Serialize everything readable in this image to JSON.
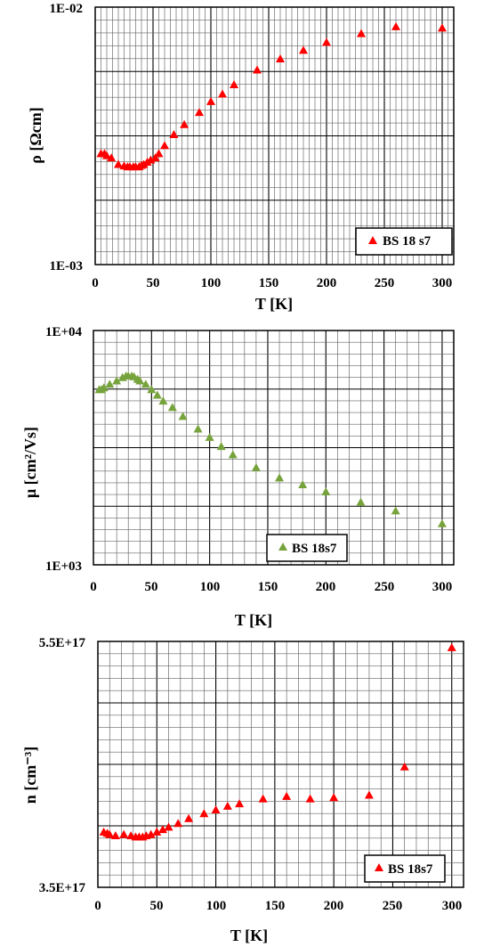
{
  "chart_data": [
    {
      "type": "scatter",
      "xlabel": "T [K]",
      "ylabel": "ρ [Ωcm]",
      "y_scale": "log",
      "xlim": [
        0,
        310
      ],
      "ylim": [
        0.001,
        0.01
      ],
      "x_ticks": [
        "0",
        "50",
        "100",
        "150",
        "200",
        "250",
        "300"
      ],
      "y_ticks": [
        "1E-03",
        "1E-02"
      ],
      "grid": true,
      "legend": "bottom-right",
      "marker_color": "#ff0000",
      "series": [
        {
          "name": "BS 18 s7",
          "x": [
            5,
            8,
            10,
            14,
            20,
            25,
            28,
            30,
            33,
            35,
            38,
            40,
            42,
            45,
            48,
            52,
            55,
            60,
            68,
            77,
            90,
            100,
            110,
            120,
            140,
            160,
            180,
            200,
            230,
            260,
            300
          ],
          "y": [
            0.0027,
            0.0027,
            0.00265,
            0.0026,
            0.00245,
            0.00242,
            0.0024,
            0.0024,
            0.0024,
            0.0024,
            0.0024,
            0.00243,
            0.00245,
            0.0025,
            0.00255,
            0.0026,
            0.0027,
            0.0029,
            0.0032,
            0.0035,
            0.0039,
            0.0043,
            0.0046,
            0.005,
            0.0057,
            0.0063,
            0.0068,
            0.0073,
            0.0079,
            0.0084,
            0.0083
          ]
        }
      ]
    },
    {
      "type": "scatter",
      "xlabel": "T [K]",
      "ylabel": "μ [cm²/Vs]",
      "y_scale": "log",
      "xlim": [
        0,
        310
      ],
      "ylim": [
        1000,
        10000
      ],
      "x_ticks": [
        "0",
        "50",
        "100",
        "150",
        "200",
        "250",
        "300"
      ],
      "y_ticks": [
        "1E+03",
        "1E+04"
      ],
      "grid": true,
      "legend": "bottom-center",
      "marker_color": "#77a33c",
      "series": [
        {
          "name": "BS 18s7",
          "x": [
            5,
            7,
            9,
            14,
            20,
            25,
            28,
            30,
            33,
            35,
            38,
            40,
            45,
            50,
            55,
            60,
            68,
            77,
            90,
            100,
            110,
            120,
            140,
            160,
            180,
            200,
            230,
            260,
            300
          ],
          "y": [
            5600,
            5600,
            5700,
            5900,
            6100,
            6300,
            6400,
            6400,
            6400,
            6350,
            6200,
            6100,
            5900,
            5600,
            5300,
            5000,
            4700,
            4300,
            3800,
            3500,
            3200,
            2950,
            2600,
            2350,
            2200,
            2050,
            1850,
            1700,
            1500
          ]
        }
      ]
    },
    {
      "type": "scatter",
      "xlabel": "T [K]",
      "ylabel": "n [cm⁻³]",
      "xlim": [
        0,
        310
      ],
      "ylim": [
        3.5e+17,
        5.5e+17
      ],
      "x_ticks": [
        "0",
        "50",
        "100",
        "150",
        "200",
        "250",
        "300"
      ],
      "y_ticks": [
        "3.5E+17",
        "5.5E+17"
      ],
      "grid": true,
      "legend": "bottom-right",
      "marker_color": "#ff0000",
      "series": [
        {
          "name": "BS 18s7",
          "x": [
            5,
            8,
            10,
            15,
            22,
            28,
            32,
            35,
            38,
            41,
            45,
            50,
            55,
            60,
            68,
            77,
            90,
            100,
            110,
            120,
            140,
            160,
            180,
            200,
            230,
            260,
            300
          ],
          "y": [
            3.95e+17,
            3.94e+17,
            3.93e+17,
            3.92e+17,
            3.93e+17,
            3.92e+17,
            3.91e+17,
            3.91e+17,
            3.91e+17,
            3.92e+17,
            3.93e+17,
            3.95e+17,
            3.97e+17,
            3.99e+17,
            4.02e+17,
            4.06e+17,
            4.1e+17,
            4.13e+17,
            4.16e+17,
            4.18e+17,
            4.22e+17,
            4.24e+17,
            4.22e+17,
            4.23e+17,
            4.25e+17,
            4.48e+17,
            5.45e+17
          ]
        }
      ]
    }
  ]
}
